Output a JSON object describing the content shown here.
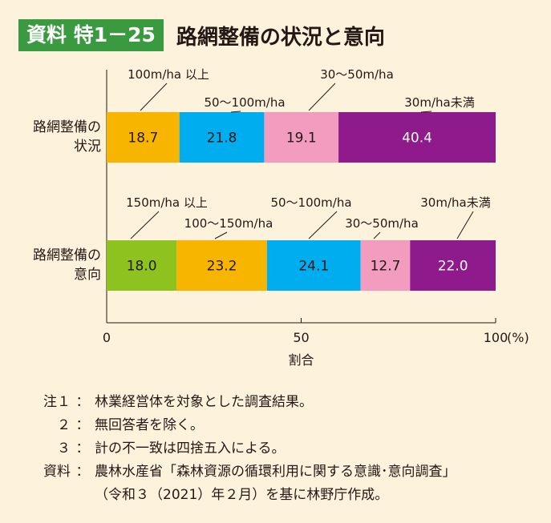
{
  "header": {
    "badge": "資料 特1－25",
    "title": "路網整備の状況と意向"
  },
  "chart_data": {
    "type": "bar",
    "orientation": "horizontal-stacked",
    "xlabel": "割合",
    "xunit": "(%)",
    "xlim": [
      0,
      100
    ],
    "xticks": [
      "0",
      "50",
      "100"
    ],
    "grid": false,
    "rows": [
      {
        "label_lines": [
          "路網整備の",
          "状況"
        ],
        "segments": [
          {
            "name": "100m/ha 以上",
            "value": 18.7,
            "label": "18.7",
            "color": "#f8b500",
            "text_color": "#231815"
          },
          {
            "name": "50〜100m/ha",
            "value": 21.8,
            "label": "21.8",
            "color": "#00aeef",
            "text_color": "#231815"
          },
          {
            "name": "30〜50m/ha",
            "value": 19.1,
            "label": "19.1",
            "color": "#f29cc0",
            "text_color": "#231815"
          },
          {
            "name": "30m/ha未満",
            "value": 40.4,
            "label": "40.4",
            "color": "#8f1a8b",
            "text_color": "#ffffff"
          }
        ]
      },
      {
        "label_lines": [
          "路網整備の",
          "意向"
        ],
        "segments": [
          {
            "name": "150m/ha 以上",
            "value": 18.0,
            "label": "18.0",
            "color": "#8dc21f",
            "text_color": "#231815"
          },
          {
            "name": "100〜150m/ha",
            "value": 23.2,
            "label": "23.2",
            "color": "#f8b500",
            "text_color": "#231815"
          },
          {
            "name": "50〜100m/ha",
            "value": 24.1,
            "label": "24.1",
            "color": "#00aeef",
            "text_color": "#231815"
          },
          {
            "name": "30〜50m/ha",
            "value": 12.7,
            "label": "12.7",
            "color": "#f29cc0",
            "text_color": "#231815"
          },
          {
            "name": "30m/ha未満",
            "value": 22.0,
            "label": "22.0",
            "color": "#8f1a8b",
            "text_color": "#ffffff"
          }
        ]
      }
    ]
  },
  "notes": [
    {
      "key": "注１",
      "sep": "：",
      "text": "林業経営体を対象とした調査結果。"
    },
    {
      "key": "２",
      "sep": "：",
      "text": "無回答者を除く。"
    },
    {
      "key": "３",
      "sep": "：",
      "text": "計の不一致は四捨五入による。"
    },
    {
      "key": "資料",
      "sep": "：",
      "text": "農林水産省「森林資源の循環利用に関する意識･意向調査」"
    },
    {
      "key": "",
      "sep": "",
      "text": "（令和３（2021）年２月）を基に林野庁作成。"
    }
  ]
}
